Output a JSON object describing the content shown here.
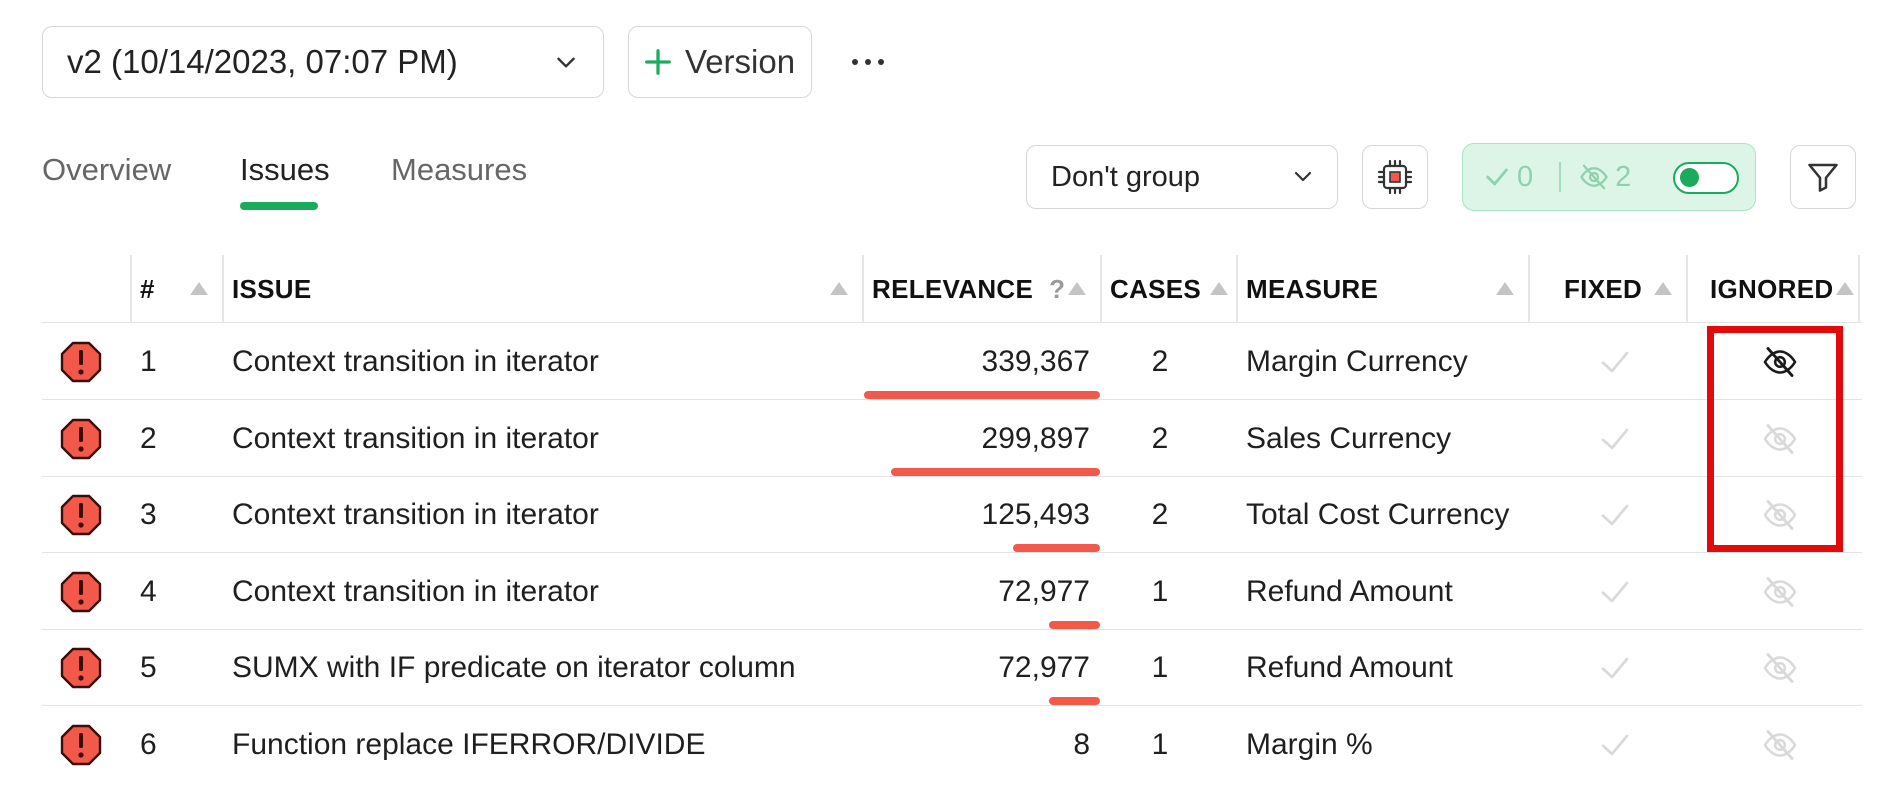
{
  "toolbar": {
    "version_select": "v2 (10/14/2023, 07:07 PM)",
    "add_version_label": "Version"
  },
  "tabs": [
    {
      "label": "Overview",
      "active": false
    },
    {
      "label": "Issues",
      "active": true
    },
    {
      "label": "Measures",
      "active": false
    }
  ],
  "controls": {
    "group_select": "Don't group",
    "fixed_count": "0",
    "ignored_count": "2",
    "accent_color": "#1aab5d"
  },
  "table": {
    "columns": {
      "num": "#",
      "issue": "ISSUE",
      "relevance": "RELEVANCE",
      "relevance_help": "?",
      "cases": "CASES",
      "measure": "MEASURE",
      "fixed": "FIXED",
      "ignored": "IGNORED"
    },
    "relevance_max": 339367,
    "rows": [
      {
        "num": "1",
        "issue": "Context transition in iterator",
        "relevance": "339,367",
        "relevance_value": 339367,
        "cases": "2",
        "measure": "Margin Currency",
        "fixed": false,
        "ignored": true
      },
      {
        "num": "2",
        "issue": "Context transition in iterator",
        "relevance": "299,897",
        "relevance_value": 299897,
        "cases": "2",
        "measure": "Sales Currency",
        "fixed": false,
        "ignored": false
      },
      {
        "num": "3",
        "issue": "Context transition in iterator",
        "relevance": "125,493",
        "relevance_value": 125493,
        "cases": "2",
        "measure": "Total Cost Currency",
        "fixed": false,
        "ignored": false
      },
      {
        "num": "4",
        "issue": "Context transition in iterator",
        "relevance": "72,977",
        "relevance_value": 72977,
        "cases": "1",
        "measure": "Refund Amount",
        "fixed": false,
        "ignored": false
      },
      {
        "num": "5",
        "issue": "SUMX with IF predicate on iterator column",
        "relevance": "72,977",
        "relevance_value": 72977,
        "cases": "1",
        "measure": "Refund Amount",
        "fixed": false,
        "ignored": false
      },
      {
        "num": "6",
        "issue": "Function replace IFERROR/DIVIDE",
        "relevance": "8",
        "relevance_value": 8,
        "cases": "1",
        "measure": "Margin %",
        "fixed": false,
        "ignored": false
      }
    ]
  },
  "severity_icon": "error-octagon-icon",
  "highlight_color": "#e20a0a"
}
